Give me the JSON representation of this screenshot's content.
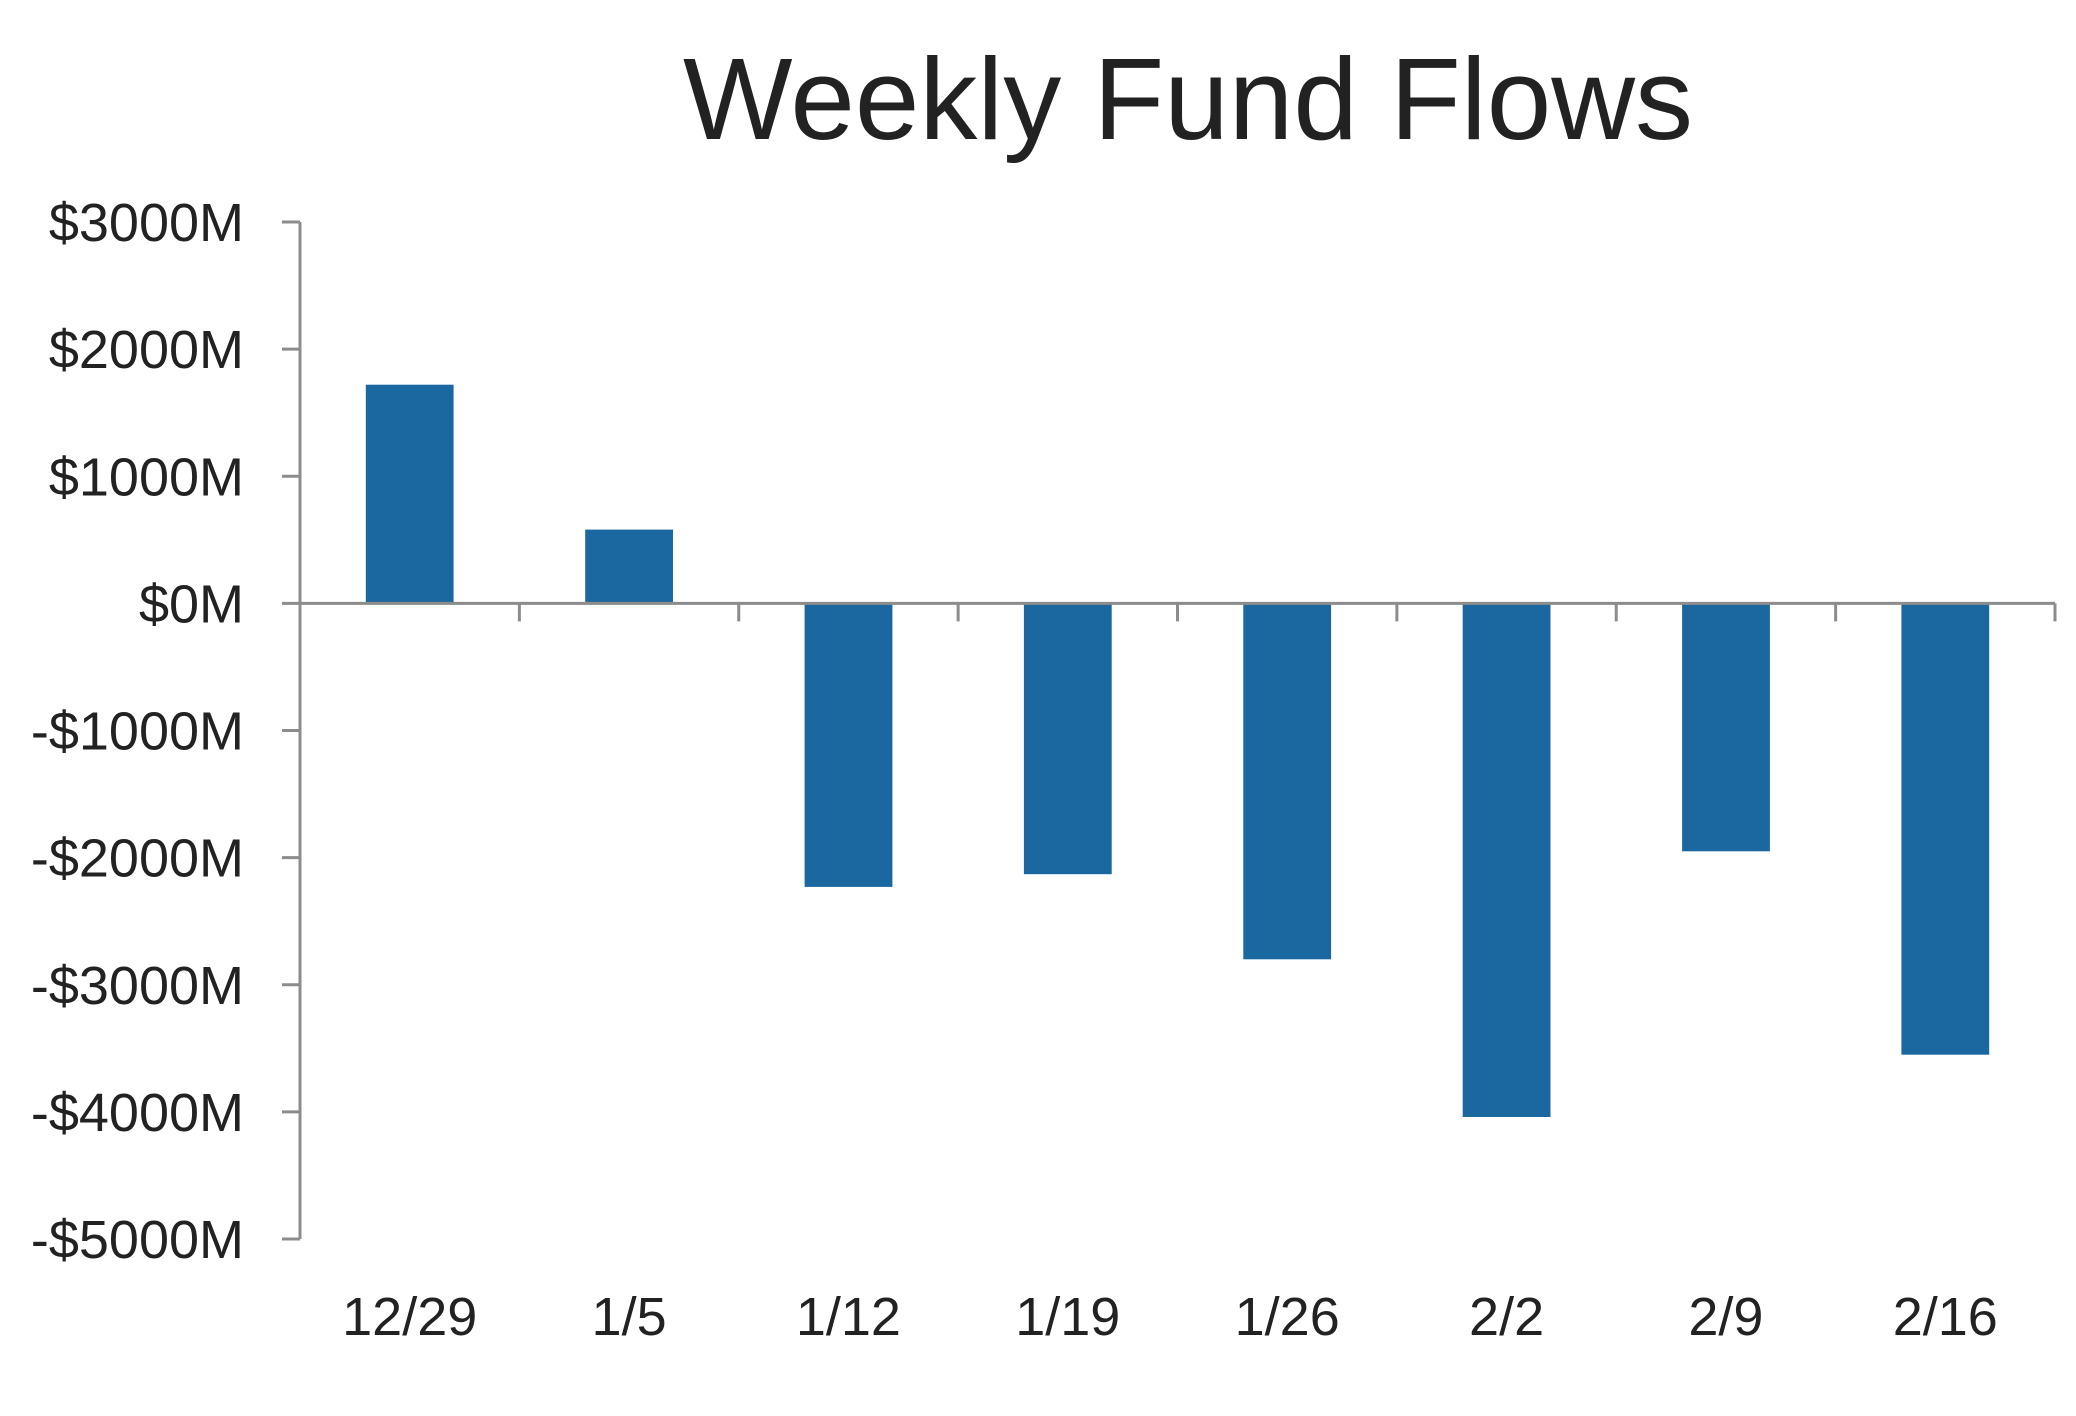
{
  "chart_data": {
    "type": "bar",
    "title": "Weekly Fund Flows",
    "xlabel": "",
    "ylabel": "",
    "categories": [
      "12/29",
      "1/5",
      "1/12",
      "1/19",
      "1/26",
      "2/2",
      "2/9",
      "2/16"
    ],
    "values": [
      1720,
      580,
      -2230,
      -2130,
      -2800,
      -4040,
      -1950,
      -3550
    ],
    "ylim": [
      -5000,
      3000
    ],
    "y_ticks": [
      3000,
      2000,
      1000,
      0,
      -1000,
      -2000,
      -3000,
      -4000,
      -5000
    ],
    "y_tick_labels": [
      "$3000M",
      "$2000M",
      "$1000M",
      "$0M",
      "-$1000M",
      "-$2000M",
      "-$3000M",
      "-$4000M",
      "-$5000M"
    ],
    "grid": false,
    "legend": "none",
    "colors": {
      "bar": "#1b67a0",
      "axis": "#8c8c8c",
      "text": "#222222"
    }
  }
}
